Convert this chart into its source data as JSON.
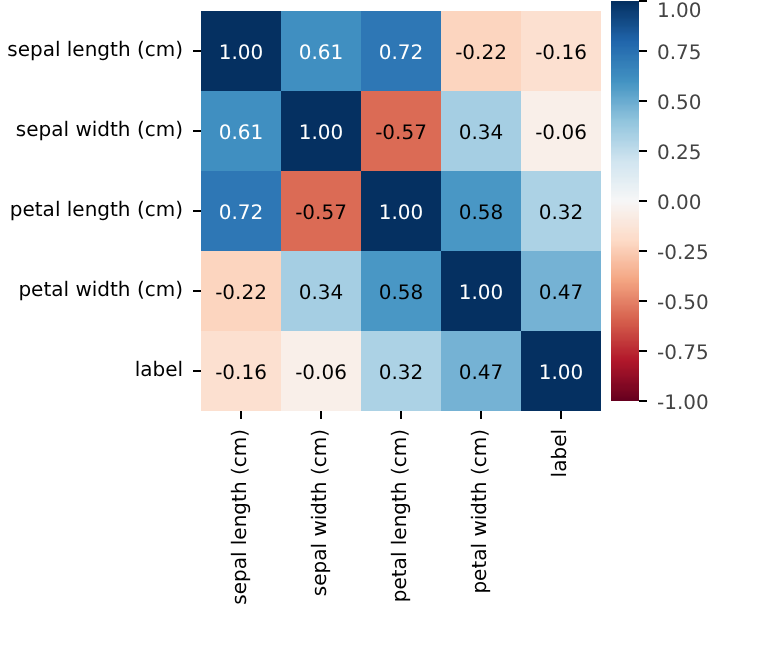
{
  "chart_data": {
    "type": "heatmap",
    "categories": [
      "sepal length (cm)",
      "sepal width (cm)",
      "petal length (cm)",
      "petal width (cm)",
      "label"
    ],
    "y_categories": [
      "sepal length (cm)",
      "sepal width (cm)",
      "petal length (cm)",
      "petal width (cm)",
      "label"
    ],
    "cells": [
      [
        1.0,
        0.61,
        0.72,
        -0.22,
        -0.16
      ],
      [
        0.61,
        1.0,
        -0.57,
        0.34,
        -0.06
      ],
      [
        0.72,
        -0.57,
        1.0,
        0.58,
        0.32
      ],
      [
        -0.22,
        0.34,
        0.58,
        1.0,
        0.47
      ],
      [
        -0.16,
        -0.06,
        0.32,
        0.47,
        1.0
      ]
    ],
    "cell_labels": [
      [
        "1.00",
        "0.61",
        "0.72",
        "-0.22",
        "-0.16"
      ],
      [
        "0.61",
        "1.00",
        "-0.57",
        "0.34",
        "-0.06"
      ],
      [
        "0.72",
        "-0.57",
        "1.00",
        "0.58",
        "0.32"
      ],
      [
        "-0.22",
        "0.34",
        "0.58",
        "1.00",
        "0.47"
      ],
      [
        "-0.16",
        "-0.06",
        "0.32",
        "0.47",
        "1.00"
      ]
    ],
    "data_labels": true,
    "clim": [
      -1,
      1
    ],
    "cticks": [
      {
        "value": -1,
        "label": "-1.00"
      },
      {
        "value": -0.75,
        "label": "-0.75"
      },
      {
        "value": -0.5,
        "label": "-0.50"
      },
      {
        "value": -0.25,
        "label": "-0.25"
      },
      {
        "value": 0,
        "label": "0.00"
      },
      {
        "value": 0.25,
        "label": "0.25"
      },
      {
        "value": 0.5,
        "label": "0.50"
      },
      {
        "value": 0.75,
        "label": "0.75"
      },
      {
        "value": 1,
        "label": "1.00"
      }
    ]
  }
}
